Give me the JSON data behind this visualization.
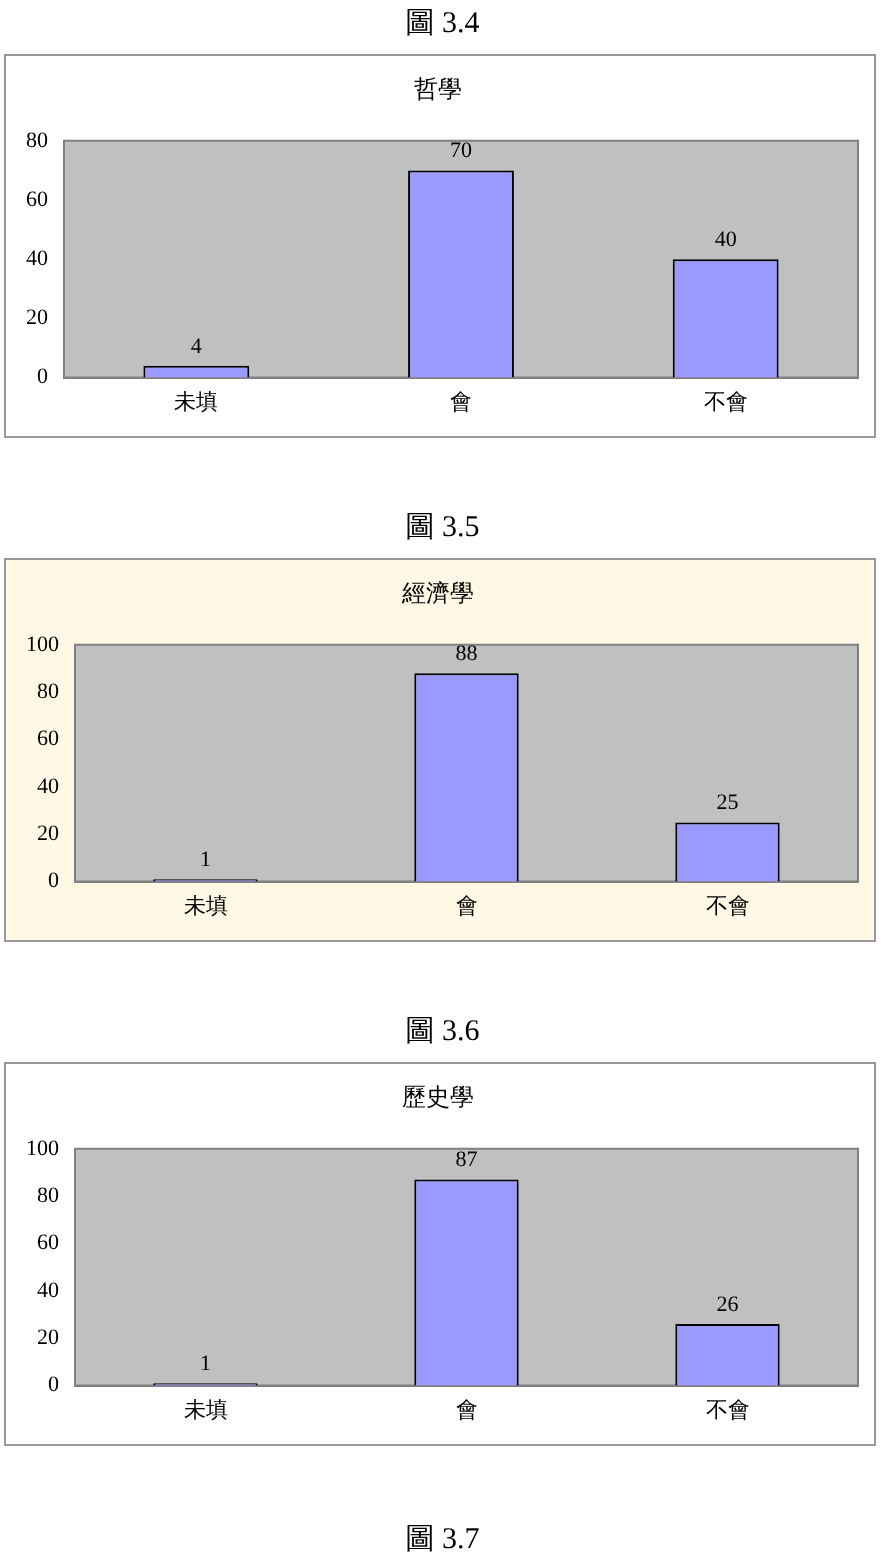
{
  "chart_data": [
    {
      "type": "bar",
      "title": "哲學",
      "categories": [
        "未填",
        "會",
        "不會"
      ],
      "values": [
        4,
        70,
        40
      ],
      "color": "#9999ff",
      "ylim": [
        0,
        80
      ],
      "yticks": [
        0,
        20,
        40,
        60,
        80
      ],
      "grid": false,
      "data_labels": true,
      "annotations": [
        "圖 3.4"
      ]
    },
    {
      "type": "bar",
      "title": "經濟學",
      "categories": [
        "未填",
        "會",
        "不會"
      ],
      "values": [
        1,
        88,
        25
      ],
      "color": "#9999ff",
      "ylim": [
        0,
        100
      ],
      "yticks": [
        0,
        20,
        40,
        60,
        80,
        100
      ],
      "grid": false,
      "data_labels": true,
      "annotations": [
        "圖 3.5"
      ]
    },
    {
      "type": "bar",
      "title": "歷史學",
      "categories": [
        "未填",
        "會",
        "不會"
      ],
      "values": [
        1,
        87,
        26
      ],
      "color": "#9999ff",
      "ylim": [
        0,
        100
      ],
      "yticks": [
        0,
        20,
        40,
        60,
        80,
        100
      ],
      "grid": false,
      "data_labels": true,
      "annotations": [
        "圖 3.6",
        "圖 3.7"
      ]
    }
  ]
}
